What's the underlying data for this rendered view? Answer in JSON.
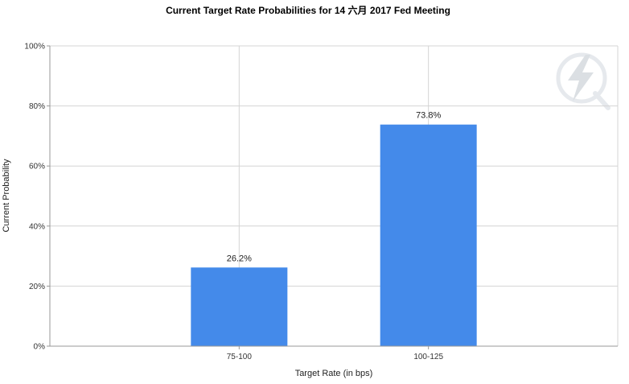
{
  "chart_data": {
    "type": "bar",
    "title": "Current Target Rate Probabilities for 14 六月 2017 Fed Meeting",
    "xlabel": "Target Rate (in bps)",
    "ylabel": "Current Probability",
    "categories": [
      "75-100",
      "100-125"
    ],
    "values": [
      26.2,
      73.8
    ],
    "data_labels": [
      "26.2%",
      "73.8%"
    ],
    "ylim": [
      0,
      100
    ],
    "yticks": [
      "0%",
      "20%",
      "40%",
      "60%",
      "80%",
      "100%"
    ],
    "ytick_values": [
      0,
      20,
      40,
      60,
      80,
      100
    ],
    "grid": true,
    "legend": "none",
    "bar_color": "#448aea",
    "grid_color": "#d4d4d4",
    "watermark": "quikstrike-logo-icon"
  }
}
